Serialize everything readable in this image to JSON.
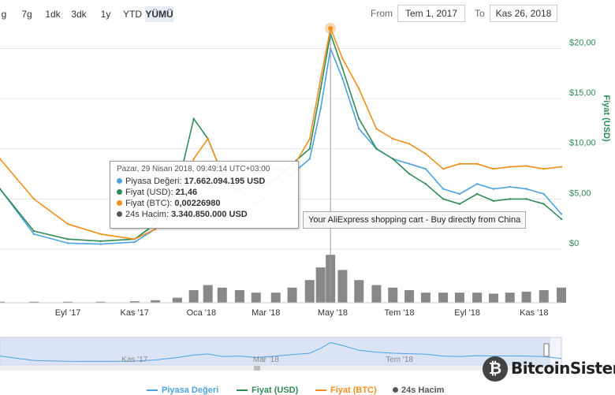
{
  "toolbar": {
    "zoom_buttons": [
      "g",
      "7g",
      "1dk",
      "3dk",
      "1y",
      "YTD",
      "YÜMÜ"
    ],
    "active_zoom": "YÜMÜ",
    "from_label": "From",
    "from_value": "Tem 1, 2017",
    "to_label": "To",
    "to_value": "Kas 26, 2018"
  },
  "tooltip": {
    "date": "Pazar, 29 Nisan 2018, 09:49:14 UTC+03:00",
    "rows": [
      {
        "label": "Piyasa Değeri:",
        "value": "17.662.094.195 USD",
        "color": "#4da3e0"
      },
      {
        "label": "Fiyat (USD):",
        "value": "21,46",
        "color": "#2e8b57"
      },
      {
        "label": "Fiyat (BTC):",
        "value": "0,00226980",
        "color": "#f28f1c"
      },
      {
        "label": "24s Hacim:",
        "value": "3.340.850.000 USD",
        "color": "#555555"
      }
    ]
  },
  "ad_tooltip": "Your AliExpress shopping cart - Buy directly from China",
  "logo": {
    "text": "BitcoinSistemi",
    "mark": "₿"
  },
  "colors": {
    "market_cap": "#4da3e0",
    "price_usd": "#2e8b57",
    "price_btc": "#f28f1c",
    "volume": "#555555",
    "navigator_fill": "#c9d8f0"
  },
  "chart_data": {
    "type": "line",
    "x_ticks": [
      "Eyl '17",
      "Kas '17",
      "Oca '18",
      "Mar '18",
      "May '18",
      "Tem '18",
      "Eyl '18",
      "Kas '18"
    ],
    "y_ticks": [
      "$20,00",
      "$15,00",
      "$10,00",
      "$5,00",
      "$0"
    ],
    "ylabel": "Fiyat (USD)",
    "ylim": [
      0,
      22
    ],
    "navigator_ticks": [
      "Kas '17",
      "Mar '18",
      "Tem '18"
    ],
    "x": [
      "2017-07-01",
      "2017-08-01",
      "2017-09-01",
      "2017-10-01",
      "2017-11-01",
      "2017-11-20",
      "2017-12-10",
      "2017-12-25",
      "2018-01-07",
      "2018-01-20",
      "2018-02-05",
      "2018-02-20",
      "2018-03-10",
      "2018-03-25",
      "2018-04-10",
      "2018-04-20",
      "2018-04-29",
      "2018-05-10",
      "2018-05-25",
      "2018-06-10",
      "2018-06-25",
      "2018-07-10",
      "2018-07-25",
      "2018-08-10",
      "2018-08-25",
      "2018-09-10",
      "2018-09-25",
      "2018-10-10",
      "2018-10-25",
      "2018-11-10",
      "2018-11-26"
    ],
    "series": [
      {
        "name": "Piyasa Değeri",
        "values": [
          6.0,
          1.5,
          0.6,
          0.5,
          0.7,
          2.0,
          4.5,
          7.0,
          8.2,
          5.5,
          6.0,
          4.5,
          6.0,
          7.5,
          9.0,
          14.0,
          20.0,
          17.0,
          12.0,
          10.0,
          9.0,
          8.5,
          8.0,
          6.0,
          5.5,
          6.5,
          6.0,
          6.2,
          6.0,
          5.5,
          3.5
        ]
      },
      {
        "name": "Fiyat (USD)",
        "values": [
          6.0,
          1.8,
          1.0,
          0.8,
          1.0,
          2.5,
          6.0,
          13.0,
          11.0,
          7.5,
          7.0,
          6.0,
          7.0,
          8.5,
          10.0,
          16.0,
          21.46,
          18.0,
          13.0,
          10.0,
          9.0,
          7.5,
          6.5,
          5.0,
          4.5,
          5.5,
          4.8,
          5.0,
          5.0,
          4.5,
          3.0
        ]
      },
      {
        "name": "Fiyat (BTC)",
        "values": [
          9.0,
          5.0,
          2.5,
          1.5,
          1.0,
          2.0,
          4.5,
          9.0,
          11.0,
          7.5,
          8.5,
          7.5,
          8.0,
          8.0,
          11.0,
          17.0,
          22.0,
          19.0,
          16.0,
          12.0,
          11.0,
          10.5,
          9.5,
          8.0,
          8.5,
          8.5,
          8.0,
          8.2,
          8.3,
          8.0,
          8.2
        ]
      }
    ],
    "volume": [
      0.02,
      0.02,
      0.02,
      0.02,
      0.03,
      0.05,
      0.1,
      0.25,
      0.35,
      0.3,
      0.25,
      0.2,
      0.2,
      0.3,
      0.45,
      0.7,
      0.95,
      0.65,
      0.45,
      0.35,
      0.3,
      0.25,
      0.2,
      0.2,
      0.2,
      0.2,
      0.18,
      0.2,
      0.22,
      0.25,
      0.3
    ],
    "legend": [
      "Piyasa Değeri",
      "Fiyat (USD)",
      "Fiyat (BTC)",
      "24s Hacim"
    ]
  }
}
